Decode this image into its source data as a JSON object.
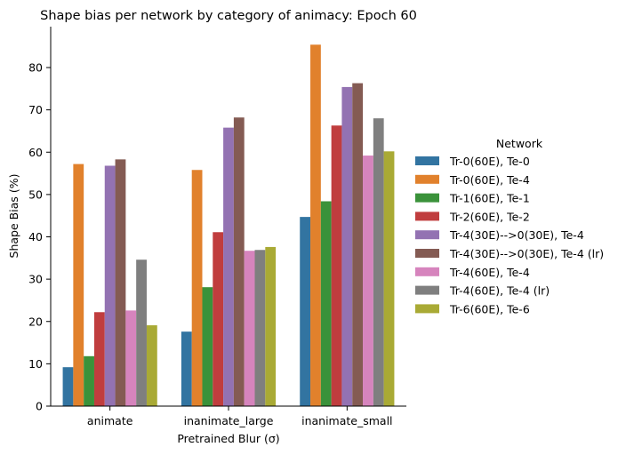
{
  "chart_data": {
    "type": "bar",
    "title": "Shape bias per network by category of animacy: Epoch 60",
    "xlabel": "Pretrained Blur (σ)",
    "ylabel": "Shape Bias (%)",
    "ylim": [
      0,
      90
    ],
    "yticks": [
      0,
      10,
      20,
      30,
      40,
      50,
      60,
      70,
      80
    ],
    "grid": false,
    "legend_title": "Network",
    "legend_position": "right",
    "categories": [
      "animate",
      "inanimate_large",
      "inanimate_small"
    ],
    "series": [
      {
        "name": "Tr-0(60E), Te-0",
        "color": "#3274a1",
        "values": [
          9.2,
          17.6,
          44.7
        ]
      },
      {
        "name": "Tr-0(60E), Te-4",
        "color": "#e1812c",
        "values": [
          57.2,
          55.8,
          85.4
        ]
      },
      {
        "name": "Tr-1(60E), Te-1",
        "color": "#3a923a",
        "values": [
          11.8,
          28.1,
          48.4
        ]
      },
      {
        "name": "Tr-2(60E), Te-2",
        "color": "#c03d3e",
        "values": [
          22.2,
          41.1,
          66.3
        ]
      },
      {
        "name": "Tr-4(30E)-->0(30E), Te-4",
        "color": "#9372b2",
        "values": [
          56.8,
          65.8,
          75.4
        ]
      },
      {
        "name": "Tr-4(30E)-->0(30E), Te-4 (lr)",
        "color": "#845b53",
        "values": [
          58.3,
          68.2,
          76.3
        ]
      },
      {
        "name": "Tr-4(60E), Te-4",
        "color": "#d684bd",
        "values": [
          22.6,
          36.7,
          59.2
        ]
      },
      {
        "name": "Tr-4(60E), Te-4 (lr)",
        "color": "#7f7f7f",
        "values": [
          34.6,
          36.9,
          68.0
        ]
      },
      {
        "name": "Tr-6(60E), Te-6",
        "color": "#a9aa35",
        "values": [
          19.1,
          37.6,
          60.2
        ]
      }
    ]
  }
}
